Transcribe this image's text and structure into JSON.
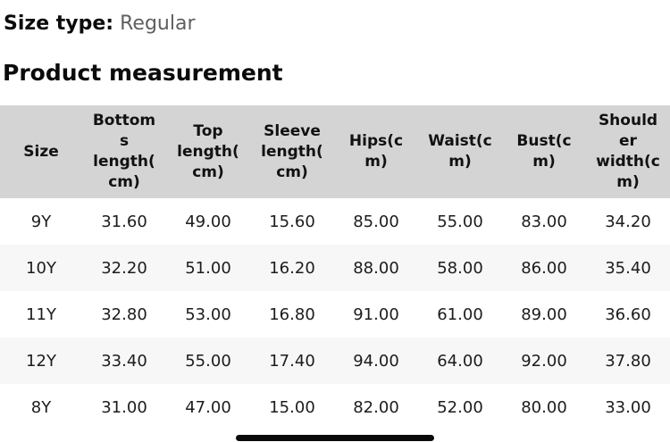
{
  "size_type": {
    "label": "Size type:",
    "value": "Regular"
  },
  "section": {
    "title": "Product measurement"
  },
  "table": {
    "columns": [
      "Size",
      "Bottoms length(cm)",
      "Top length(cm)",
      "Sleeve length(cm)",
      "Hips(cm)",
      "Waist(cm)",
      "Bust(cm)",
      "Shoulder width(cm)"
    ],
    "rows": [
      [
        "9Y",
        "31.60",
        "49.00",
        "15.60",
        "85.00",
        "55.00",
        "83.00",
        "34.20"
      ],
      [
        "10Y",
        "32.20",
        "51.00",
        "16.20",
        "88.00",
        "58.00",
        "86.00",
        "35.40"
      ],
      [
        "11Y",
        "32.80",
        "53.00",
        "16.80",
        "91.00",
        "61.00",
        "89.00",
        "36.60"
      ],
      [
        "12Y",
        "33.40",
        "55.00",
        "17.40",
        "94.00",
        "64.00",
        "92.00",
        "37.80"
      ],
      [
        "8Y",
        "31.00",
        "47.00",
        "15.00",
        "82.00",
        "52.00",
        "80.00",
        "33.00"
      ]
    ]
  },
  "colors": {
    "header_bg": "#d4d4d4",
    "stripe_bg": "#f7f7f7",
    "text": "#1c1c1c",
    "muted_text": "#5f5f5f",
    "home_indicator": "#0a0a0a"
  }
}
